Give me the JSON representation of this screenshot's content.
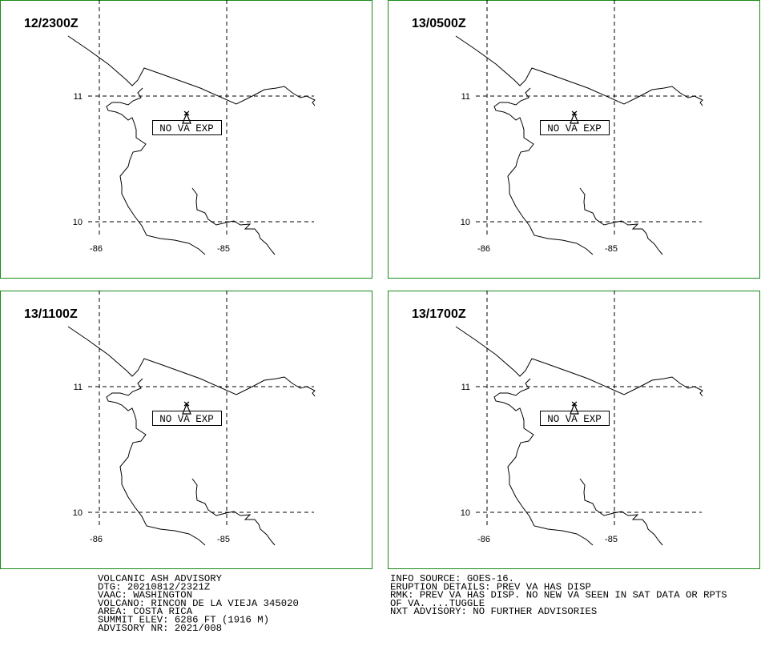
{
  "panels": [
    {
      "time": "12/2300Z",
      "status": "NO VA EXP"
    },
    {
      "time": "13/0500Z",
      "status": "NO VA EXP"
    },
    {
      "time": "13/1100Z",
      "status": "NO VA EXP"
    },
    {
      "time": "13/1700Z",
      "status": "NO VA EXP"
    }
  ],
  "grid": {
    "latitudes": [
      11,
      10
    ],
    "longitudes": [
      -86,
      -85
    ]
  },
  "advisory": {
    "left": [
      "VOLCANIC ASH ADVISORY",
      "DTG: 20210812/2321Z",
      "VAAC: WASHINGTON",
      "VOLCANO: RINCON DE LA VIEJA 345020",
      "AREA: COSTA RICA",
      "SUMMIT ELEV: 6286 FT (1916 M)",
      "ADVISORY NR: 2021/008"
    ],
    "right": [
      "INFO SOURCE: GOES-16.",
      "ERUPTION DETAILS: PREV VA HAS DISP",
      "RMK: PREV VA HAS DISP. NO NEW VA SEEN IN SAT DATA OR RPTS",
      "OF VA. ...TUGGLE",
      "NXT ADVISORY: NO FURTHER ADVISORIES"
    ]
  }
}
